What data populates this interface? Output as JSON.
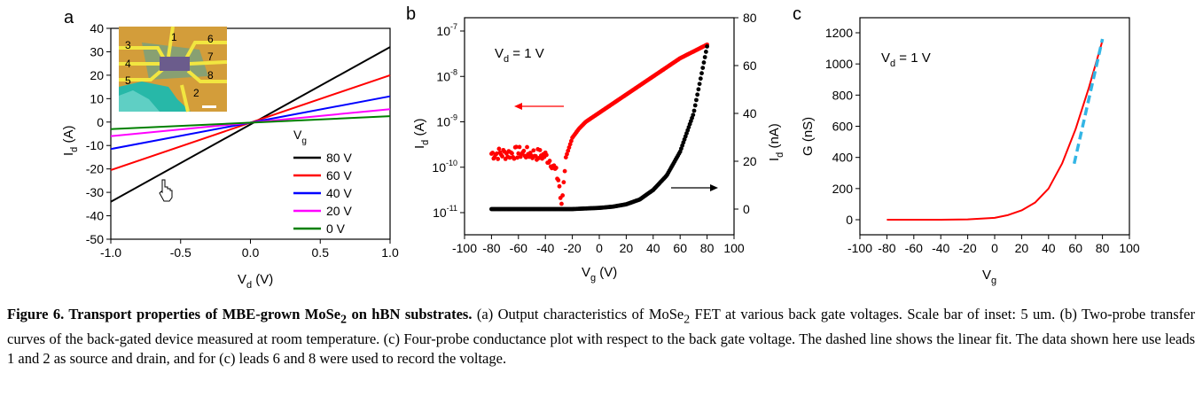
{
  "panels": {
    "a": {
      "letter": "a",
      "xlabel_main": "V",
      "xlabel_sub": "d",
      "xlabel_unit": " (V)",
      "ylabel_main": "I",
      "ylabel_sub": "d",
      "ylabel_unit": " (A)",
      "legend_title_main": "V",
      "legend_title_sub": "g",
      "inset": {
        "leads": [
          "1",
          "2",
          "3",
          "4",
          "5",
          "6",
          "7",
          "8"
        ],
        "scale_bar": "5 um"
      }
    },
    "b": {
      "letter": "b",
      "annotation_main": "V",
      "annotation_sub": "d",
      "annotation_rest": " = 1 V",
      "xlabel_main": "V",
      "xlabel_sub": "g",
      "xlabel_unit": " (V)",
      "ylabel_left_main": "I",
      "ylabel_left_sub": "d",
      "ylabel_left_unit": " (A)",
      "ylabel_right_main": "I",
      "ylabel_right_sub": "d",
      "ylabel_right_unit": " (nA)",
      "left_tick_exponents": [
        "-7",
        "-8",
        "-9",
        "-10",
        "-11"
      ],
      "left_tick_base": "10"
    },
    "c": {
      "letter": "c",
      "annotation_main": "V",
      "annotation_sub": "d",
      "annotation_rest": " = 1 V",
      "xlabel_main": "V",
      "xlabel_sub": "g",
      "ylabel": "G (nS)"
    }
  },
  "colors": {
    "axis": "#000000",
    "v80": "#000000",
    "v60": "#ff0000",
    "v40": "#0000ff",
    "v20": "#ff00ff",
    "v0": "#008000",
    "red_scatter": "#ff0000",
    "black_scatter": "#000000",
    "fit": "#33b5e5"
  },
  "chart_data": [
    {
      "panel": "a",
      "type": "line",
      "xlabel": "Vd (V)",
      "ylabel": "Id (A)",
      "xlim": [
        -1.0,
        1.0
      ],
      "ylim": [
        -50,
        40
      ],
      "xticks": [
        "-1.0",
        "-0.5",
        "0.0",
        "0.5",
        "1.0"
      ],
      "yticks": [
        "-50",
        "-40",
        "-30",
        "-20",
        "-10",
        "0",
        "10",
        "20",
        "30",
        "40"
      ],
      "legend_title": "Vg",
      "legend_position": "bottom-right",
      "series": [
        {
          "name": "80 V",
          "color": "#000000",
          "x": [
            -1.0,
            1.0
          ],
          "y": [
            -34,
            32
          ]
        },
        {
          "name": "60 V",
          "color": "#ff0000",
          "x": [
            -1.0,
            1.0
          ],
          "y": [
            -20.5,
            20
          ]
        },
        {
          "name": "40 V",
          "color": "#0000ff",
          "x": [
            -1.0,
            1.0
          ],
          "y": [
            -11.5,
            11
          ]
        },
        {
          "name": "20 V",
          "color": "#ff00ff",
          "x": [
            -1.0,
            1.0
          ],
          "y": [
            -6,
            5.5
          ]
        },
        {
          "name": "0 V",
          "color": "#008000",
          "x": [
            -1.0,
            1.0
          ],
          "y": [
            -3,
            2.5
          ]
        }
      ]
    },
    {
      "panel": "b",
      "type": "scatter",
      "annotation": "Vd = 1 V",
      "xlabel": "Vg (V)",
      "ylabel_left": "Id (A)",
      "ylabel_right": "Id (nA)",
      "xlim": [
        -100,
        100
      ],
      "ylim_left_log10": [
        -11,
        -7
      ],
      "ylim_right": [
        -10,
        80
      ],
      "yscale_left": "log",
      "xticks": [
        "-100",
        "-80",
        "-60",
        "-40",
        "-20",
        "0",
        "20",
        "40",
        "60",
        "80",
        "100"
      ],
      "yticks_right": [
        "0",
        "20",
        "40",
        "60",
        "80"
      ],
      "series": [
        {
          "name": "",
          "axis": "left",
          "color": "#ff0000",
          "x": [
            -80,
            -70,
            -60,
            -50,
            -40,
            -35,
            -30,
            -28,
            -25,
            -20,
            -15,
            -10,
            0,
            10,
            20,
            30,
            40,
            50,
            60,
            70,
            80
          ],
          "log10_y": [
            -9.7,
            -9.7,
            -9.68,
            -9.7,
            -9.75,
            -9.9,
            -10.3,
            -10.9,
            -9.8,
            -9.35,
            -9.15,
            -9.0,
            -8.8,
            -8.6,
            -8.4,
            -8.2,
            -8.0,
            -7.8,
            -7.6,
            -7.45,
            -7.3
          ]
        },
        {
          "name": "",
          "axis": "right",
          "color": "#000000",
          "x": [
            -80,
            -60,
            -40,
            -20,
            0,
            10,
            20,
            30,
            40,
            50,
            60,
            70,
            75,
            80
          ],
          "y": [
            0,
            0,
            0,
            0,
            0.5,
            1,
            2,
            4,
            8,
            14,
            24,
            40,
            54,
            68
          ]
        }
      ],
      "arrows": [
        {
          "direction": "left",
          "color": "#ff0000"
        },
        {
          "direction": "right",
          "color": "#000000"
        }
      ]
    },
    {
      "panel": "c",
      "type": "line",
      "annotation": "Vd = 1 V",
      "xlabel": "Vg",
      "ylabel": "G (nS)",
      "xlim": [
        -100,
        100
      ],
      "ylim": [
        -80,
        1250
      ],
      "xticks": [
        "-100",
        "-80",
        "-60",
        "-40",
        "-20",
        "0",
        "20",
        "40",
        "60",
        "80",
        "100"
      ],
      "yticks": [
        "0",
        "200",
        "400",
        "600",
        "800",
        "1000",
        "1200"
      ],
      "series": [
        {
          "name": "",
          "color": "#ff0000",
          "style": "solid",
          "x": [
            -80,
            -60,
            -40,
            -20,
            0,
            10,
            20,
            30,
            40,
            50,
            60,
            70,
            80
          ],
          "y": [
            0,
            0,
            0,
            2,
            12,
            30,
            60,
            110,
            200,
            360,
            580,
            850,
            1150
          ]
        },
        {
          "name": "",
          "color": "#33b5e5",
          "style": "dashed",
          "x": [
            59,
            80
          ],
          "y": [
            360,
            1160
          ]
        }
      ]
    }
  ],
  "caption": {
    "figure_label": "Figure 6.",
    "title_part1": " Transport properties of MBE-grown MoSe",
    "title_sub": "2",
    "title_part2": " on hBN substrates.",
    "a_part1": " (a) Output characteristics of MoSe",
    "a_sub": "2",
    "a_part2": " FET at various back gate voltages. Scale bar of inset: 5 um. (b) Two-probe transfer curves of the back-gated device measured at room temperature. (c) Four-probe conductance plot with respect to the back gate voltage. The dashed line shows the linear fit. The data shown here use leads 1 and 2 as source and drain, and for (c) leads 6 and 8 were used to record the voltage."
  }
}
